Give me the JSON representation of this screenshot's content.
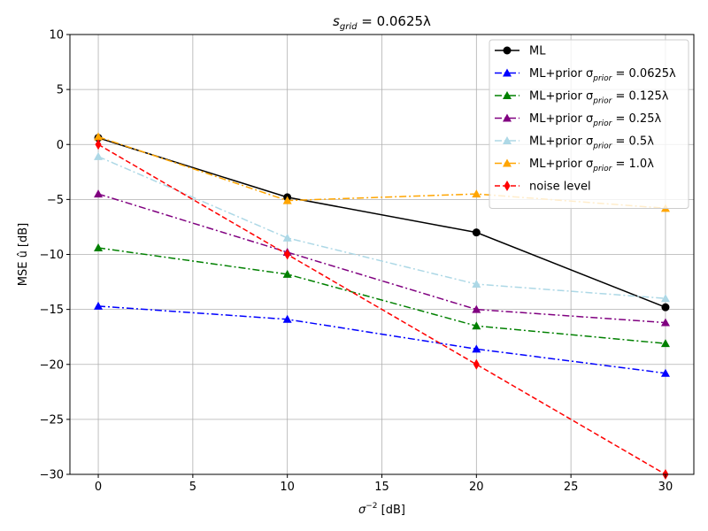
{
  "chart_data": {
    "type": "line",
    "title": "s_grid = 0.0625λ",
    "title_parts": {
      "main": "s",
      "sub": "grid",
      "rest": " = 0.0625λ"
    },
    "xlabel": "σ⁻² [dB]",
    "xlabel_parts": {
      "main": "σ",
      "sup": "−2",
      "rest": " [dB]"
    },
    "ylabel": "MSE û [dB]",
    "xlim": [
      -1.5,
      31.5
    ],
    "ylim": [
      -30,
      10
    ],
    "xticks": [
      0,
      5,
      10,
      15,
      20,
      25,
      30
    ],
    "yticks": [
      10,
      5,
      0,
      -5,
      -10,
      -15,
      -20,
      -25,
      -30
    ],
    "grid": true,
    "legend_position": "top-right",
    "x": [
      0,
      10,
      20,
      30
    ],
    "series": [
      {
        "name": "ML",
        "label_parts": {
          "text": "ML",
          "sub": "",
          "rest": ""
        },
        "color": "#000000",
        "linestyle": "solid",
        "marker": "circle",
        "values": [
          0.6,
          -4.8,
          -8.0,
          -14.8
        ]
      },
      {
        "name": "ML+prior σ_prior = 0.0625λ",
        "label_parts": {
          "text": "ML+prior σ",
          "sub": "prior",
          "rest": " = 0.0625λ"
        },
        "color": "#0000ff",
        "linestyle": "dashdot",
        "marker": "triangle",
        "values": [
          -14.7,
          -15.9,
          -18.6,
          -20.8
        ]
      },
      {
        "name": "ML+prior σ_prior = 0.125λ",
        "label_parts": {
          "text": "ML+prior σ",
          "sub": "prior",
          "rest": " = 0.125λ"
        },
        "color": "#008000",
        "linestyle": "dashdot",
        "marker": "triangle",
        "values": [
          -9.4,
          -11.8,
          -16.5,
          -18.1
        ]
      },
      {
        "name": "ML+prior σ_prior = 0.25λ",
        "label_parts": {
          "text": "ML+prior σ",
          "sub": "prior",
          "rest": " = 0.25λ"
        },
        "color": "#800080",
        "linestyle": "dashdot",
        "marker": "triangle",
        "values": [
          -4.5,
          -9.8,
          -15.0,
          -16.2
        ]
      },
      {
        "name": "ML+prior σ_prior = 0.5λ",
        "label_parts": {
          "text": "ML+prior σ",
          "sub": "prior",
          "rest": " = 0.5λ"
        },
        "color": "#add8e6",
        "linestyle": "dashdot",
        "marker": "triangle",
        "values": [
          -1.1,
          -8.5,
          -12.7,
          -14.0
        ]
      },
      {
        "name": "ML+prior σ_prior = 1.0λ",
        "label_parts": {
          "text": "ML+prior σ",
          "sub": "prior",
          "rest": " = 1.0λ"
        },
        "color": "#ffa500",
        "linestyle": "dashdot",
        "marker": "triangle",
        "values": [
          0.7,
          -5.1,
          -4.5,
          -5.8
        ]
      },
      {
        "name": "noise level",
        "label_parts": {
          "text": "noise level",
          "sub": "",
          "rest": ""
        },
        "color": "#ff0000",
        "linestyle": "dashed",
        "marker": "diamond",
        "values": [
          0,
          -10,
          -20,
          -30
        ]
      }
    ]
  }
}
